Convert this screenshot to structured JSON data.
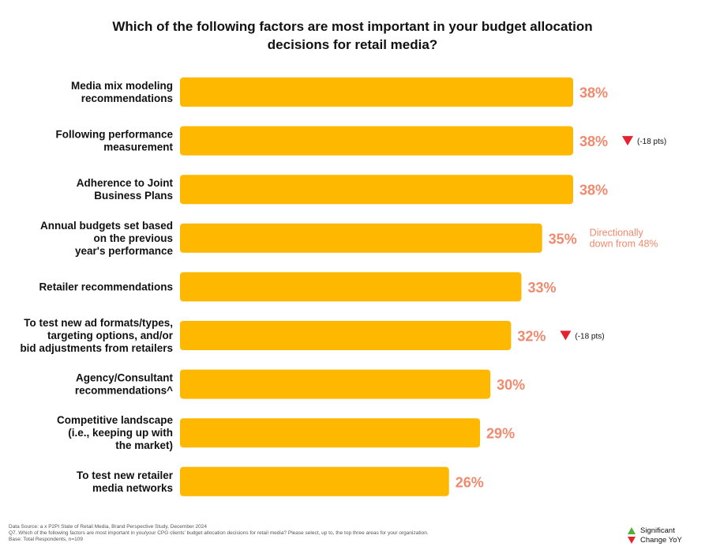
{
  "colors": {
    "bar": "#ffb800",
    "value_label": "#f08a6e",
    "down": "#e5232f",
    "up": "#4fb13a",
    "note": "#f08a6e"
  },
  "chart_data": {
    "type": "bar",
    "orientation": "horizontal",
    "title": "Which of the following factors are most important in your budget allocation decisions for retail media?",
    "categories": [
      [
        "Media mix modeling",
        "recommendations"
      ],
      [
        "Following performance",
        "measurement"
      ],
      [
        "Adherence to Joint",
        "Business Plans"
      ],
      [
        "Annual budgets set based",
        "on the previous",
        "year's performance"
      ],
      [
        "Retailer recommendations"
      ],
      [
        "To test new ad formats/types,",
        "targeting options, and/or",
        "bid adjustments from retailers"
      ],
      [
        "Agency/Consultant",
        "recommendations^"
      ],
      [
        "Competitive landscape",
        "(i.e., keeping up with",
        "the market)"
      ],
      [
        "To test new retailer",
        "media networks"
      ]
    ],
    "values": [
      38,
      38,
      38,
      35,
      33,
      32,
      30,
      29,
      26
    ],
    "value_labels": [
      "38%",
      "38%",
      "38%",
      "35%",
      "33%",
      "32%",
      "30%",
      "29%",
      "26%"
    ],
    "changes": [
      null,
      "(-18 pts)",
      null,
      null,
      null,
      "(-18 pts)",
      null,
      null,
      null
    ],
    "annotations": [
      null,
      null,
      null,
      [
        "Directionally",
        "down from 48%"
      ],
      null,
      null,
      null,
      null,
      null
    ],
    "xlim": [
      0,
      38
    ],
    "grid": false
  },
  "footer": {
    "lines": [
      "Data Source: a x P2PI State of Retail Media, Brand Perspective Study, December 2024",
      "Q7. Which of the following factors are most important in you/your CPG clients' budget allocation decisions for retail media?  Please select, up to, the top three areas for your organization.",
      "Base:  Total Respondents, n=109"
    ]
  },
  "legend": {
    "line1": "Significant",
    "line2": "Change YoY"
  }
}
